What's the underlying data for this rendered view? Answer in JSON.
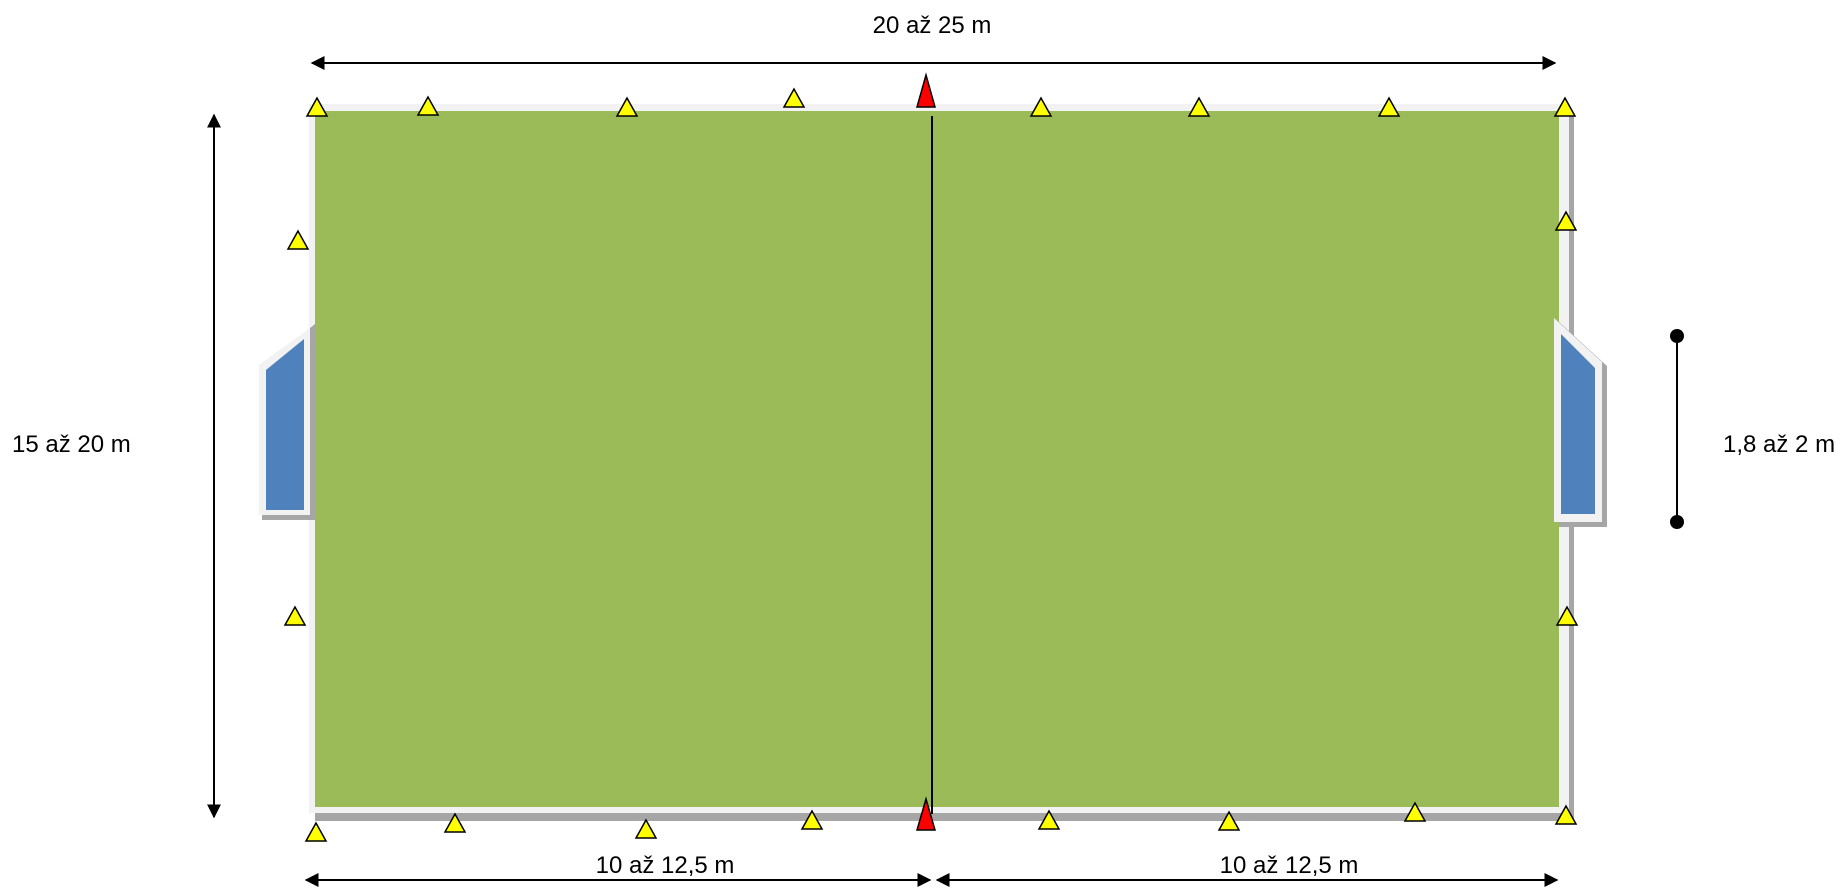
{
  "labels": {
    "total_width": "20 až 25 m",
    "total_height": "15 až 20 m",
    "half_left": "10 až 12,5 m",
    "half_right": "10 až 12,5 m",
    "goal_width": "1,8 až 2 m"
  },
  "colors": {
    "field": "#9BBB59",
    "field_border": "#F2F2F2",
    "field_shadow": "#A6A6A6",
    "goal": "#4F81BD",
    "cone_boundary": "#FFFF00",
    "cone_center": "#FF0000",
    "line": "#000000"
  }
}
